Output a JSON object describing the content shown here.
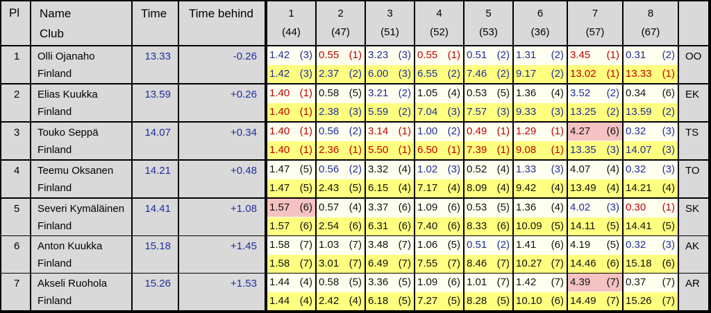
{
  "header": {
    "pl": "Pl",
    "name": "Name",
    "club": "Club",
    "time": "Time",
    "behind": "Time behind",
    "legs": [
      {
        "n": "1",
        "code": "(44)"
      },
      {
        "n": "2",
        "code": "(47)"
      },
      {
        "n": "3",
        "code": "(51)"
      },
      {
        "n": "4",
        "code": "(52)"
      },
      {
        "n": "5",
        "code": "(53)"
      },
      {
        "n": "6",
        "code": "(36)"
      },
      {
        "n": "7",
        "code": "(57)"
      },
      {
        "n": "8",
        "code": "(67)"
      }
    ]
  },
  "runners": [
    {
      "pl": "1",
      "name": "Olli Ojanaho",
      "club": "Finland",
      "time": "13.33",
      "behind": "-0.26",
      "abbr": "OO",
      "split": [
        [
          "1.42",
          "(3)",
          "b"
        ],
        [
          "0.55",
          "(1)",
          "r"
        ],
        [
          "3.23",
          "(3)",
          "b"
        ],
        [
          "0.55",
          "(1)",
          "r"
        ],
        [
          "0.51",
          "(2)",
          "b"
        ],
        [
          "1.31",
          "(2)",
          "b"
        ],
        [
          "3.45",
          "(1)",
          "r"
        ],
        [
          "0.31",
          "(2)",
          "b"
        ]
      ],
      "cum": [
        [
          "1.42",
          "(3)",
          "b"
        ],
        [
          "2.37",
          "(2)",
          "b"
        ],
        [
          "6.00",
          "(3)",
          "b"
        ],
        [
          "6.55",
          "(2)",
          "b"
        ],
        [
          "7.46",
          "(2)",
          "b"
        ],
        [
          "9.17",
          "(2)",
          "b"
        ],
        [
          "13.02",
          "(1)",
          "r"
        ],
        [
          "13.33",
          "(1)",
          "r"
        ]
      ]
    },
    {
      "pl": "2",
      "name": "Elias Kuukka",
      "club": "Finland",
      "time": "13.59",
      "behind": "+0.26",
      "abbr": "EK",
      "split": [
        [
          "1.40",
          "(1)",
          "r"
        ],
        [
          "0.58",
          "(5)",
          "k"
        ],
        [
          "3.21",
          "(2)",
          "b"
        ],
        [
          "1.05",
          "(4)",
          "k"
        ],
        [
          "0.53",
          "(5)",
          "k"
        ],
        [
          "1.36",
          "(4)",
          "k"
        ],
        [
          "3.52",
          "(2)",
          "b"
        ],
        [
          "0.34",
          "(6)",
          "k"
        ]
      ],
      "cum": [
        [
          "1.40",
          "(1)",
          "r"
        ],
        [
          "2.38",
          "(3)",
          "b"
        ],
        [
          "5.59",
          "(2)",
          "b"
        ],
        [
          "7.04",
          "(3)",
          "b"
        ],
        [
          "7.57",
          "(3)",
          "b"
        ],
        [
          "9.33",
          "(3)",
          "b"
        ],
        [
          "13.25",
          "(2)",
          "b"
        ],
        [
          "13.59",
          "(2)",
          "b"
        ]
      ]
    },
    {
      "pl": "3",
      "name": "Touko Seppä",
      "club": "Finland",
      "time": "14.07",
      "behind": "+0.34",
      "abbr": "TS",
      "split": [
        [
          "1.40",
          "(1)",
          "r"
        ],
        [
          "0.56",
          "(2)",
          "b"
        ],
        [
          "3.14",
          "(1)",
          "r"
        ],
        [
          "1.00",
          "(2)",
          "b"
        ],
        [
          "0.49",
          "(1)",
          "r"
        ],
        [
          "1.29",
          "(1)",
          "r"
        ],
        [
          "4.27",
          "(6)",
          "p"
        ],
        [
          "0.32",
          "(3)",
          "b"
        ]
      ],
      "cum": [
        [
          "1.40",
          "(1)",
          "r"
        ],
        [
          "2.36",
          "(1)",
          "r"
        ],
        [
          "5.50",
          "(1)",
          "r"
        ],
        [
          "6.50",
          "(1)",
          "r"
        ],
        [
          "7.39",
          "(1)",
          "r"
        ],
        [
          "9.08",
          "(1)",
          "r"
        ],
        [
          "13.35",
          "(3)",
          "b"
        ],
        [
          "14.07",
          "(3)",
          "b"
        ]
      ]
    },
    {
      "pl": "4",
      "name": "Teemu Oksanen",
      "club": "Finland",
      "time": "14.21",
      "behind": "+0.48",
      "abbr": "TO",
      "split": [
        [
          "1.47",
          "(5)",
          "k"
        ],
        [
          "0.56",
          "(2)",
          "b"
        ],
        [
          "3.32",
          "(4)",
          "k"
        ],
        [
          "1.02",
          "(3)",
          "b"
        ],
        [
          "0.52",
          "(4)",
          "k"
        ],
        [
          "1.33",
          "(3)",
          "b"
        ],
        [
          "4.07",
          "(4)",
          "k"
        ],
        [
          "0.32",
          "(3)",
          "b"
        ]
      ],
      "cum": [
        [
          "1.47",
          "(5)",
          "k"
        ],
        [
          "2.43",
          "(5)",
          "k"
        ],
        [
          "6.15",
          "(4)",
          "k"
        ],
        [
          "7.17",
          "(4)",
          "k"
        ],
        [
          "8.09",
          "(4)",
          "k"
        ],
        [
          "9.42",
          "(4)",
          "k"
        ],
        [
          "13.49",
          "(4)",
          "k"
        ],
        [
          "14.21",
          "(4)",
          "k"
        ]
      ]
    },
    {
      "pl": "5",
      "name": "Severi Kymäläinen",
      "club": "Finland",
      "time": "14.41",
      "behind": "+1.08",
      "abbr": "SK",
      "split": [
        [
          "1.57",
          "(6)",
          "p"
        ],
        [
          "0.57",
          "(4)",
          "k"
        ],
        [
          "3.37",
          "(6)",
          "k"
        ],
        [
          "1.09",
          "(6)",
          "k"
        ],
        [
          "0.53",
          "(5)",
          "k"
        ],
        [
          "1.36",
          "(4)",
          "k"
        ],
        [
          "4.02",
          "(3)",
          "b"
        ],
        [
          "0.30",
          "(1)",
          "r"
        ]
      ],
      "cum": [
        [
          "1.57",
          "(6)",
          "k"
        ],
        [
          "2.54",
          "(6)",
          "k"
        ],
        [
          "6.31",
          "(6)",
          "k"
        ],
        [
          "7.40",
          "(6)",
          "k"
        ],
        [
          "8.33",
          "(6)",
          "k"
        ],
        [
          "10.09",
          "(5)",
          "k"
        ],
        [
          "14.11",
          "(5)",
          "k"
        ],
        [
          "14.41",
          "(5)",
          "k"
        ]
      ]
    },
    {
      "pl": "6",
      "name": "Anton Kuukka",
      "club": "Finland",
      "time": "15.18",
      "behind": "+1.45",
      "abbr": "AK",
      "split": [
        [
          "1.58",
          "(7)",
          "k"
        ],
        [
          "1.03",
          "(7)",
          "k"
        ],
        [
          "3.48",
          "(7)",
          "k"
        ],
        [
          "1.06",
          "(5)",
          "k"
        ],
        [
          "0.51",
          "(2)",
          "b"
        ],
        [
          "1.41",
          "(6)",
          "k"
        ],
        [
          "4.19",
          "(5)",
          "k"
        ],
        [
          "0.32",
          "(3)",
          "b"
        ]
      ],
      "cum": [
        [
          "1.58",
          "(7)",
          "k"
        ],
        [
          "3.01",
          "(7)",
          "k"
        ],
        [
          "6.49",
          "(7)",
          "k"
        ],
        [
          "7.55",
          "(7)",
          "k"
        ],
        [
          "8.46",
          "(7)",
          "k"
        ],
        [
          "10.27",
          "(7)",
          "k"
        ],
        [
          "14.46",
          "(6)",
          "k"
        ],
        [
          "15.18",
          "(6)",
          "k"
        ]
      ]
    },
    {
      "pl": "7",
      "name": "Akseli Ruohola",
      "club": "Finland",
      "time": "15.26",
      "behind": "+1.53",
      "abbr": "AR",
      "split": [
        [
          "1.44",
          "(4)",
          "k"
        ],
        [
          "0.58",
          "(5)",
          "k"
        ],
        [
          "3.36",
          "(5)",
          "k"
        ],
        [
          "1.09",
          "(6)",
          "k"
        ],
        [
          "1.01",
          "(7)",
          "k"
        ],
        [
          "1.42",
          "(7)",
          "k"
        ],
        [
          "4.39",
          "(7)",
          "p"
        ],
        [
          "0.37",
          "(7)",
          "k"
        ]
      ],
      "cum": [
        [
          "1.44",
          "(4)",
          "k"
        ],
        [
          "2.42",
          "(4)",
          "k"
        ],
        [
          "6.18",
          "(5)",
          "k"
        ],
        [
          "7.27",
          "(5)",
          "k"
        ],
        [
          "8.28",
          "(5)",
          "k"
        ],
        [
          "10.10",
          "(6)",
          "k"
        ],
        [
          "14.49",
          "(7)",
          "k"
        ],
        [
          "15.26",
          "(7)",
          "k"
        ]
      ]
    }
  ],
  "colors": {
    "header_bg": "#d9d9d9",
    "leader_red": "#c00000",
    "blue": "#1f2d9e",
    "yellow": "#ffff80",
    "cream": "#fffff0",
    "pink": "#f4c2c2"
  }
}
